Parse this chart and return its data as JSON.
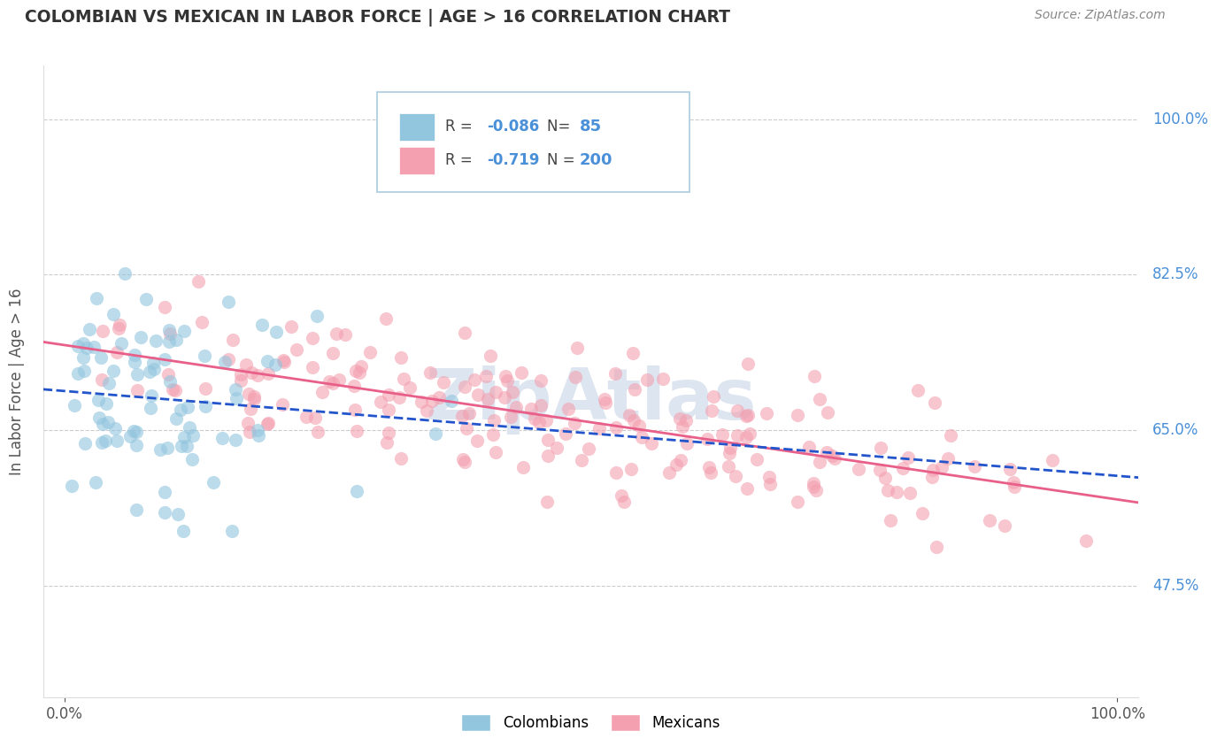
{
  "title": "COLOMBIAN VS MEXICAN IN LABOR FORCE | AGE > 16 CORRELATION CHART",
  "source_text": "Source: ZipAtlas.com",
  "ylabel": "In Labor Force | Age > 16",
  "y_tick_labels": [
    "47.5%",
    "65.0%",
    "82.5%",
    "100.0%"
  ],
  "y_tick_values": [
    0.475,
    0.65,
    0.825,
    1.0
  ],
  "x_tick_values": [
    0.0,
    1.0
  ],
  "x_tick_labels": [
    "0.0%",
    "100.0%"
  ],
  "xlim": [
    -0.02,
    1.02
  ],
  "ylim": [
    0.35,
    1.06
  ],
  "legend_labels": [
    "Colombians",
    "Mexicans"
  ],
  "legend_r_values": [
    "-0.086",
    "-0.719"
  ],
  "legend_n_values": [
    "85",
    "200"
  ],
  "colombian_color": "#92c5de",
  "mexican_color": "#f4a0b0",
  "colombian_line_color": "#2255cc",
  "mexican_line_color": "#e8608a",
  "colombian_dash_color": "#aaaacc",
  "background_color": "#ffffff",
  "grid_color": "#cccccc",
  "title_color": "#333333",
  "watermark_text": "ZipAtlas",
  "watermark_color": "#dde5f0",
  "label_color": "#4a90d9",
  "source_color": "#888888",
  "tick_color": "#555555",
  "colombian_R": -0.086,
  "colombian_N": 85,
  "mexican_R": -0.719,
  "mexican_N": 200,
  "seed": 42
}
